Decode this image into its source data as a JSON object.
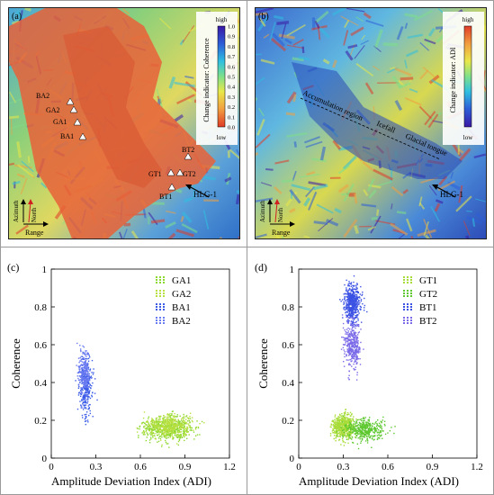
{
  "panel_a": {
    "label": "(a)",
    "colorbar_title": "Change indicator: Coherence",
    "colorbar_high": "high",
    "colorbar_low": "low",
    "colorbar_ticks": [
      "1.0",
      "0.9",
      "0.8",
      "0.7",
      "0.6",
      "0.5",
      "0.4",
      "0.3",
      "0.2",
      "0.1",
      "0.0"
    ],
    "colorbar_colors": [
      "#3a18a6",
      "#2d5fd8",
      "#30c0e0",
      "#7ee08a",
      "#e8e84a",
      "#f2a040",
      "#e03c28"
    ],
    "point_labels": [
      "BA2",
      "GA2",
      "GA1",
      "BA1",
      "BT2",
      "GT1",
      "GT2",
      "BT1"
    ],
    "glacier_label": "HLG-1",
    "azimuth_label": "Azimuth",
    "north_label": "North",
    "range_label": "Range"
  },
  "panel_b": {
    "label": "(b)",
    "colorbar_title": "Change indicator: ADI",
    "colorbar_high": "high",
    "colorbar_low": "low",
    "colorbar_colors": [
      "#e03c28",
      "#f2a040",
      "#e8e84a",
      "#7ee08a",
      "#30c0e0",
      "#2d5fd8",
      "#3a18a6"
    ],
    "region_labels": [
      "Accumulation region",
      "Icefall",
      "Glacial tongue"
    ],
    "glacier_label": "HLG-1",
    "azimuth_label": "Azimuth",
    "north_label": "North",
    "range_label": "Range"
  },
  "chart_data": [
    {
      "type": "scatter",
      "panel": "(c)",
      "xlabel": "Amplitude Deviation Index (ADI)",
      "ylabel": "Coherence",
      "xlim": [
        0,
        1.2
      ],
      "ylim": [
        0,
        1
      ],
      "xticks": [
        "0",
        "0.3",
        "0.6",
        "0.9",
        "1.2"
      ],
      "yticks": [
        "0",
        "0.2",
        "0.4",
        "0.6",
        "0.8",
        "1"
      ],
      "grid": false,
      "legend": "top-right",
      "series": [
        {
          "name": "GA1",
          "color": "#8ed830",
          "x_center": 0.78,
          "x_spread": 0.16,
          "y_center": 0.16,
          "y_spread": 0.045,
          "count": 520
        },
        {
          "name": "GA2",
          "color": "#b8e040",
          "x_center": 0.8,
          "x_spread": 0.15,
          "y_center": 0.17,
          "y_spread": 0.04,
          "count": 360
        },
        {
          "name": "BA1",
          "color": "#3c5ce8",
          "x_center": 0.23,
          "x_spread": 0.04,
          "y_center": 0.38,
          "y_spread": 0.11,
          "count": 330
        },
        {
          "name": "BA2",
          "color": "#6a7af0",
          "x_center": 0.22,
          "x_spread": 0.035,
          "y_center": 0.45,
          "y_spread": 0.09,
          "count": 230
        }
      ]
    },
    {
      "type": "scatter",
      "panel": "(d)",
      "xlabel": "Amplitude Deviation Index (ADI)",
      "ylabel": "Coherence",
      "xlim": [
        0,
        1.2
      ],
      "ylim": [
        0,
        1
      ],
      "xticks": [
        "0",
        "0.3",
        "0.6",
        "0.9",
        "1.2"
      ],
      "yticks": [
        "0",
        "0.2",
        "0.4",
        "0.6",
        "0.8",
        "1"
      ],
      "grid": false,
      "legend": "top-right",
      "series": [
        {
          "name": "GT1",
          "color": "#a8dc38",
          "x_center": 0.3,
          "x_spread": 0.07,
          "y_center": 0.17,
          "y_spread": 0.045,
          "count": 560
        },
        {
          "name": "GT2",
          "color": "#5ec830",
          "x_center": 0.45,
          "x_spread": 0.13,
          "y_center": 0.15,
          "y_spread": 0.04,
          "count": 420
        },
        {
          "name": "BT1",
          "color": "#3c52e4",
          "x_center": 0.36,
          "x_spread": 0.05,
          "y_center": 0.82,
          "y_spread": 0.07,
          "count": 520
        },
        {
          "name": "BT2",
          "color": "#7a6ae8",
          "x_center": 0.36,
          "x_spread": 0.05,
          "y_center": 0.6,
          "y_spread": 0.09,
          "count": 380
        }
      ]
    }
  ]
}
